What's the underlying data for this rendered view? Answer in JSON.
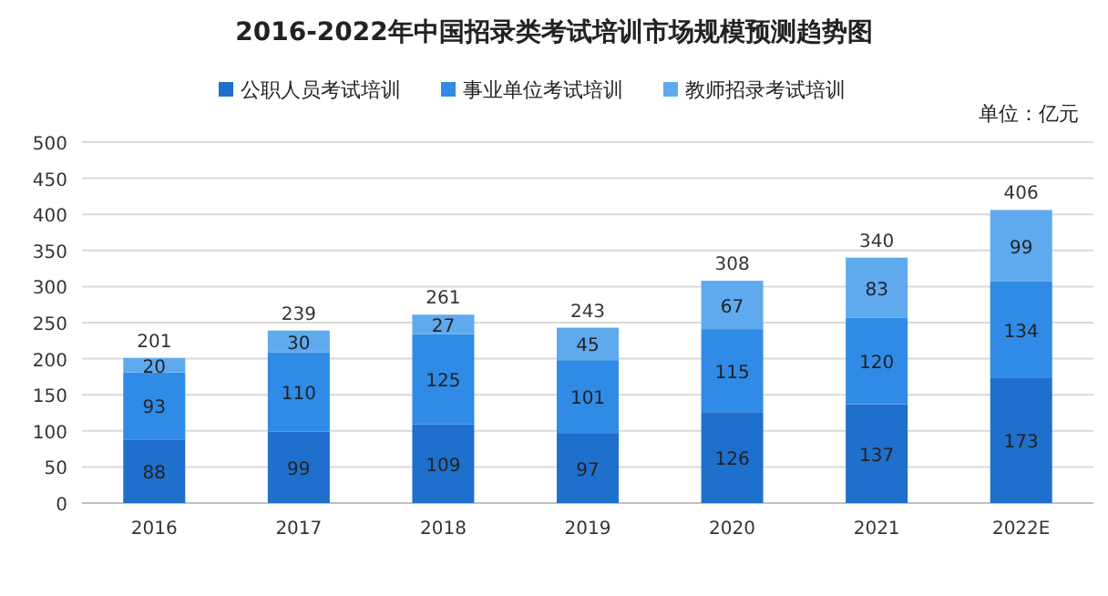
{
  "chart_data": {
    "type": "bar",
    "title": "2016-2022年中国招录类考试培训市场规模预测趋势图",
    "annotations": [
      "单位：亿元"
    ],
    "categories": [
      "2016",
      "2017",
      "2018",
      "2019",
      "2020",
      "2021",
      "2022E"
    ],
    "series": [
      {
        "name": "公职人员考试培训",
        "color": "#1f6fcc",
        "values": [
          88,
          99,
          109,
          97,
          126,
          137,
          173
        ]
      },
      {
        "name": "事业单位考试培训",
        "color": "#2f8be6",
        "values": [
          93,
          110,
          125,
          101,
          115,
          120,
          134
        ]
      },
      {
        "name": "教师招录考试培训",
        "color": "#5fa9ef",
        "values": [
          20,
          30,
          27,
          45,
          67,
          83,
          99
        ]
      }
    ],
    "stacked": true,
    "data_labels": true,
    "totals": [
      "201",
      "239",
      "261",
      "243",
      "308",
      "340",
      "406"
    ],
    "ylim": [
      0,
      500
    ],
    "yticks": [
      0,
      50,
      100,
      150,
      200,
      250,
      300,
      350,
      400,
      450,
      500
    ],
    "grid": "y",
    "legend": "top"
  }
}
